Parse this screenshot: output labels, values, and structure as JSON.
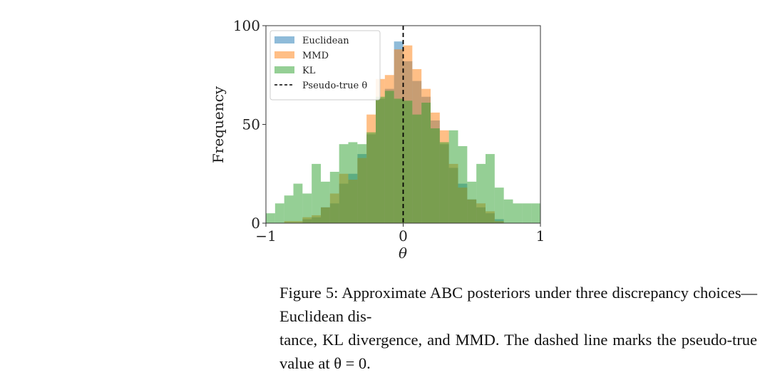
{
  "chart_data": {
    "type": "bar",
    "subtype": "overlaid-histogram",
    "xlabel": "θ",
    "ylabel": "Frequency",
    "xlim": [
      -1,
      1
    ],
    "ylim": [
      0,
      100
    ],
    "xticks": [
      "−1",
      "0",
      "1"
    ],
    "yticks": [
      "0",
      "50",
      "100"
    ],
    "bin_range": [
      -1,
      1
    ],
    "n_bins": 30,
    "legend_position": "top-left",
    "series": [
      {
        "name": "Euclidean",
        "color": "#1f77b4",
        "values": [
          0,
          0,
          0,
          0,
          2,
          3,
          8,
          10,
          20,
          25,
          35,
          45,
          63,
          68,
          92,
          82,
          72,
          64,
          52,
          40,
          28,
          20,
          12,
          8,
          5,
          2,
          0,
          0,
          0,
          0
        ]
      },
      {
        "name": "MMD",
        "color": "#ff7f0e",
        "values": [
          0,
          0,
          1,
          1,
          3,
          4,
          8,
          15,
          25,
          22,
          33,
          55,
          73,
          75,
          88,
          90,
          78,
          68,
          56,
          47,
          30,
          18,
          12,
          10,
          6,
          1,
          0,
          0,
          0,
          0
        ]
      },
      {
        "name": "KL",
        "color": "#2ca02c",
        "values": [
          5,
          10,
          14,
          20,
          15,
          30,
          21,
          26,
          40,
          41,
          40,
          46,
          64,
          67,
          63,
          62,
          55,
          61,
          48,
          41,
          47,
          39,
          21,
          30,
          35,
          18,
          12,
          10,
          10,
          10
        ]
      }
    ],
    "reference_line": {
      "label": "Pseudo-true θ",
      "x": 0,
      "style": "dashed",
      "color": "#000000"
    }
  },
  "caption": {
    "line1": "Figure 5: Approximate ABC posteriors under three discrepancy choices—Euclidean dis-",
    "line2": "tance, KL divergence, and MMD. The dashed line marks the pseudo-true value at θ = 0."
  }
}
